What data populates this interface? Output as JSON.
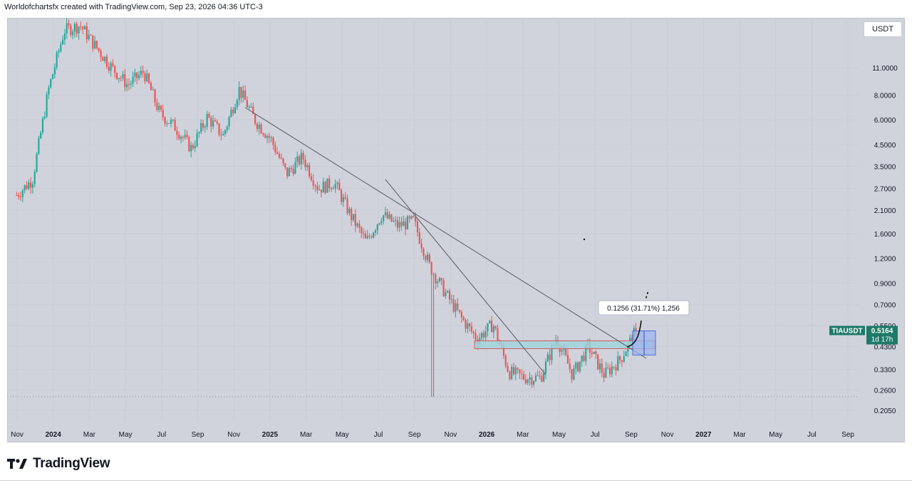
{
  "header": {
    "credit": "Worldofchartsfx created with TradingView.com, Sep 23, 2026 04:36 UTC-3"
  },
  "currency_button": {
    "label": "USDT"
  },
  "symbol_tag": {
    "symbol": "TIAUSDT",
    "price": "0.5164",
    "countdown": "1d 17h"
  },
  "measure_label": {
    "text": "0.1256 (31.71%) 1,256"
  },
  "logo": {
    "text": "TradingView"
  },
  "colors": {
    "up": "#26a69a",
    "down": "#ef5350",
    "background": "#d0d3dc",
    "trendline": "#555a66",
    "zone": "#9fd4dd",
    "measure": "#9db4ee"
  },
  "chart_data": {
    "type": "candlestick",
    "symbol": "TIAUSDT",
    "scale": "log",
    "ylim": [
      0.2,
      19
    ],
    "y_ticks": [
      "11.0000",
      "8.0000",
      "6.0000",
      "4.5000",
      "3.5000",
      "2.7000",
      "2.1000",
      "1.6000",
      "1.2000",
      "0.9000",
      "0.7000",
      "0.5500",
      "0.4300",
      "0.3300",
      "0.2600",
      "0.2050"
    ],
    "x_ticks": [
      {
        "label": "Nov",
        "bold": false
      },
      {
        "label": "2024",
        "bold": true
      },
      {
        "label": "Mar",
        "bold": false
      },
      {
        "label": "May",
        "bold": false
      },
      {
        "label": "Jul",
        "bold": false
      },
      {
        "label": "Sep",
        "bold": false
      },
      {
        "label": "Nov",
        "bold": false
      },
      {
        "label": "2025",
        "bold": true
      },
      {
        "label": "Mar",
        "bold": false
      },
      {
        "label": "May",
        "bold": false
      },
      {
        "label": "Jul",
        "bold": false
      },
      {
        "label": "Sep",
        "bold": false
      },
      {
        "label": "Nov",
        "bold": false
      },
      {
        "label": "2026",
        "bold": true
      },
      {
        "label": "Mar",
        "bold": false
      },
      {
        "label": "May",
        "bold": false
      },
      {
        "label": "Jul",
        "bold": false
      },
      {
        "label": "Sep",
        "bold": false
      },
      {
        "label": "Nov",
        "bold": false
      },
      {
        "label": "2027",
        "bold": true
      },
      {
        "label": "Mar",
        "bold": false
      },
      {
        "label": "May",
        "bold": false
      },
      {
        "label": "Jul",
        "bold": false
      },
      {
        "label": "Sep",
        "bold": false
      }
    ],
    "last_price": 0.5164,
    "anchors": [
      [
        "Nov",
        2.5
      ],
      [
        "Dec",
        3.0
      ],
      [
        "2024",
        8.5
      ],
      [
        "Feb",
        17
      ],
      [
        "Feb",
        18
      ],
      [
        "Mar",
        14
      ],
      [
        "Apr",
        11
      ],
      [
        "May",
        9
      ],
      [
        "Jun",
        10.5
      ],
      [
        "Jul",
        6.5
      ],
      [
        "Aug",
        5.5
      ],
      [
        "Sep",
        4.3
      ],
      [
        "Oct",
        6.2
      ],
      [
        "Nov",
        5.0
      ],
      [
        "Nov",
        8.6
      ],
      [
        "Dec",
        6.0
      ],
      [
        "2025",
        4.8
      ],
      [
        "Feb",
        3.2
      ],
      [
        "Mar",
        3.9
      ],
      [
        "Apr",
        2.7
      ],
      [
        "May",
        2.9
      ],
      [
        "Jun",
        2.0
      ],
      [
        "Jul",
        1.45
      ],
      [
        "Jul",
        2.0
      ],
      [
        "Aug",
        1.75
      ],
      [
        "Sep",
        1.85
      ],
      [
        "Oct",
        1.1
      ],
      [
        "Nov",
        0.8
      ],
      [
        "Nov",
        0.6
      ],
      [
        "Dec",
        0.47
      ],
      [
        "2026",
        0.56
      ],
      [
        "Feb",
        0.32
      ],
      [
        "Mar",
        0.3
      ],
      [
        "Apr",
        0.3
      ],
      [
        "May",
        0.48
      ],
      [
        "Jun",
        0.31
      ],
      [
        "Jul",
        0.43
      ],
      [
        "Aug",
        0.31
      ],
      [
        "Sep",
        0.37
      ],
      [
        "Sep",
        0.5164
      ]
    ],
    "wick_lows": [
      [
        "Sep 2025",
        0.24
      ]
    ],
    "annotations": [
      {
        "type": "trendline",
        "note": "descending resistance from Nov 2024 high"
      },
      {
        "type": "trendline",
        "note": "steeper descending line"
      },
      {
        "type": "zone",
        "low": 0.42,
        "high": 0.46
      },
      {
        "type": "price_range",
        "low": 0.39,
        "high": 0.5164,
        "label": "0.1256 (31.71%) 1,256"
      }
    ]
  }
}
